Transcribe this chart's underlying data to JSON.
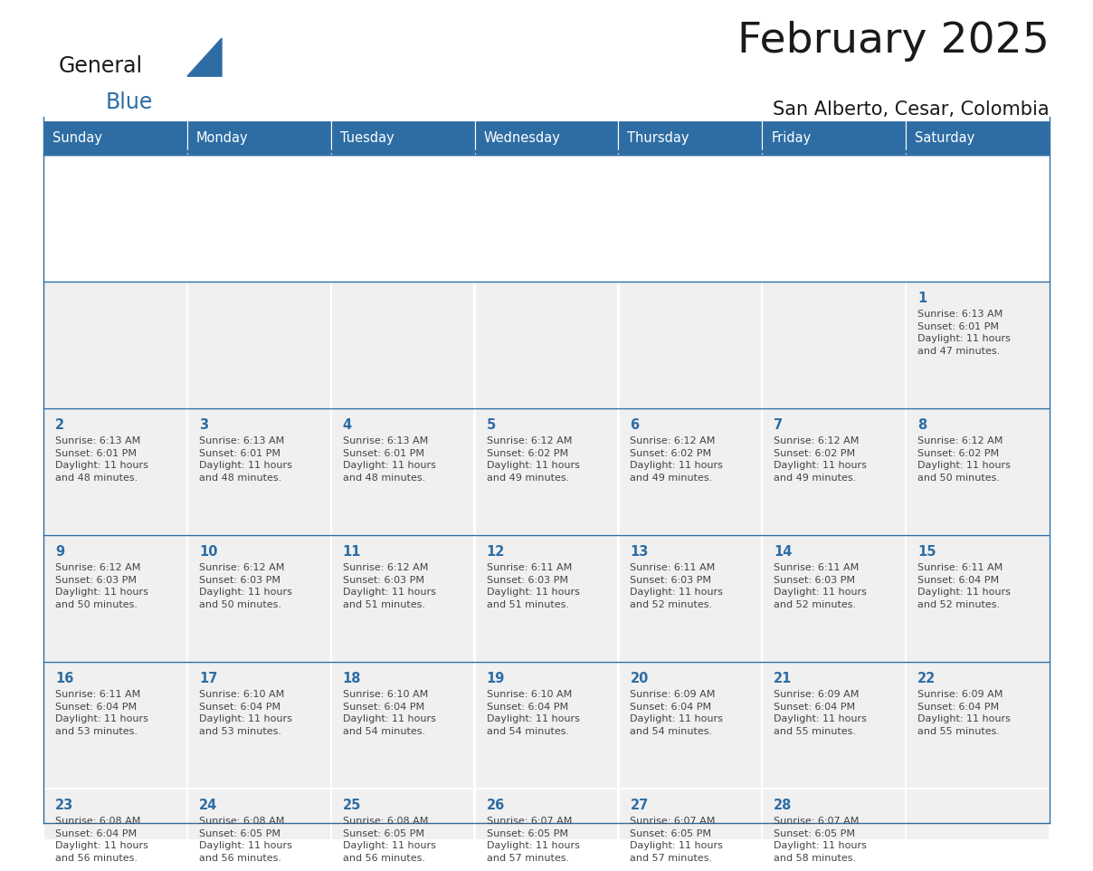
{
  "title": "February 2025",
  "subtitle": "San Alberto, Cesar, Colombia",
  "header_bg": "#2E6DA4",
  "header_text_color": "#FFFFFF",
  "cell_bg": "#F0F0F0",
  "cell_border_color": "#FFFFFF",
  "day_number_color": "#2E6DA4",
  "info_text_color": "#444444",
  "separator_color": "#2E6DA4",
  "days_of_week": [
    "Sunday",
    "Monday",
    "Tuesday",
    "Wednesday",
    "Thursday",
    "Friday",
    "Saturday"
  ],
  "weeks": [
    [
      {
        "day": "",
        "info": ""
      },
      {
        "day": "",
        "info": ""
      },
      {
        "day": "",
        "info": ""
      },
      {
        "day": "",
        "info": ""
      },
      {
        "day": "",
        "info": ""
      },
      {
        "day": "",
        "info": ""
      },
      {
        "day": "1",
        "info": "Sunrise: 6:13 AM\nSunset: 6:01 PM\nDaylight: 11 hours\nand 47 minutes."
      }
    ],
    [
      {
        "day": "2",
        "info": "Sunrise: 6:13 AM\nSunset: 6:01 PM\nDaylight: 11 hours\nand 48 minutes."
      },
      {
        "day": "3",
        "info": "Sunrise: 6:13 AM\nSunset: 6:01 PM\nDaylight: 11 hours\nand 48 minutes."
      },
      {
        "day": "4",
        "info": "Sunrise: 6:13 AM\nSunset: 6:01 PM\nDaylight: 11 hours\nand 48 minutes."
      },
      {
        "day": "5",
        "info": "Sunrise: 6:12 AM\nSunset: 6:02 PM\nDaylight: 11 hours\nand 49 minutes."
      },
      {
        "day": "6",
        "info": "Sunrise: 6:12 AM\nSunset: 6:02 PM\nDaylight: 11 hours\nand 49 minutes."
      },
      {
        "day": "7",
        "info": "Sunrise: 6:12 AM\nSunset: 6:02 PM\nDaylight: 11 hours\nand 49 minutes."
      },
      {
        "day": "8",
        "info": "Sunrise: 6:12 AM\nSunset: 6:02 PM\nDaylight: 11 hours\nand 50 minutes."
      }
    ],
    [
      {
        "day": "9",
        "info": "Sunrise: 6:12 AM\nSunset: 6:03 PM\nDaylight: 11 hours\nand 50 minutes."
      },
      {
        "day": "10",
        "info": "Sunrise: 6:12 AM\nSunset: 6:03 PM\nDaylight: 11 hours\nand 50 minutes."
      },
      {
        "day": "11",
        "info": "Sunrise: 6:12 AM\nSunset: 6:03 PM\nDaylight: 11 hours\nand 51 minutes."
      },
      {
        "day": "12",
        "info": "Sunrise: 6:11 AM\nSunset: 6:03 PM\nDaylight: 11 hours\nand 51 minutes."
      },
      {
        "day": "13",
        "info": "Sunrise: 6:11 AM\nSunset: 6:03 PM\nDaylight: 11 hours\nand 52 minutes."
      },
      {
        "day": "14",
        "info": "Sunrise: 6:11 AM\nSunset: 6:03 PM\nDaylight: 11 hours\nand 52 minutes."
      },
      {
        "day": "15",
        "info": "Sunrise: 6:11 AM\nSunset: 6:04 PM\nDaylight: 11 hours\nand 52 minutes."
      }
    ],
    [
      {
        "day": "16",
        "info": "Sunrise: 6:11 AM\nSunset: 6:04 PM\nDaylight: 11 hours\nand 53 minutes."
      },
      {
        "day": "17",
        "info": "Sunrise: 6:10 AM\nSunset: 6:04 PM\nDaylight: 11 hours\nand 53 minutes."
      },
      {
        "day": "18",
        "info": "Sunrise: 6:10 AM\nSunset: 6:04 PM\nDaylight: 11 hours\nand 54 minutes."
      },
      {
        "day": "19",
        "info": "Sunrise: 6:10 AM\nSunset: 6:04 PM\nDaylight: 11 hours\nand 54 minutes."
      },
      {
        "day": "20",
        "info": "Sunrise: 6:09 AM\nSunset: 6:04 PM\nDaylight: 11 hours\nand 54 minutes."
      },
      {
        "day": "21",
        "info": "Sunrise: 6:09 AM\nSunset: 6:04 PM\nDaylight: 11 hours\nand 55 minutes."
      },
      {
        "day": "22",
        "info": "Sunrise: 6:09 AM\nSunset: 6:04 PM\nDaylight: 11 hours\nand 55 minutes."
      }
    ],
    [
      {
        "day": "23",
        "info": "Sunrise: 6:08 AM\nSunset: 6:04 PM\nDaylight: 11 hours\nand 56 minutes."
      },
      {
        "day": "24",
        "info": "Sunrise: 6:08 AM\nSunset: 6:05 PM\nDaylight: 11 hours\nand 56 minutes."
      },
      {
        "day": "25",
        "info": "Sunrise: 6:08 AM\nSunset: 6:05 PM\nDaylight: 11 hours\nand 56 minutes."
      },
      {
        "day": "26",
        "info": "Sunrise: 6:07 AM\nSunset: 6:05 PM\nDaylight: 11 hours\nand 57 minutes."
      },
      {
        "day": "27",
        "info": "Sunrise: 6:07 AM\nSunset: 6:05 PM\nDaylight: 11 hours\nand 57 minutes."
      },
      {
        "day": "28",
        "info": "Sunrise: 6:07 AM\nSunset: 6:05 PM\nDaylight: 11 hours\nand 58 minutes."
      },
      {
        "day": "",
        "info": ""
      }
    ]
  ],
  "header_fontsize": 10.5,
  "day_number_fontsize": 10.5,
  "info_fontsize": 8.0,
  "title_fontsize": 34,
  "subtitle_fontsize": 15,
  "logo_general_fontsize": 17,
  "logo_blue_fontsize": 17
}
